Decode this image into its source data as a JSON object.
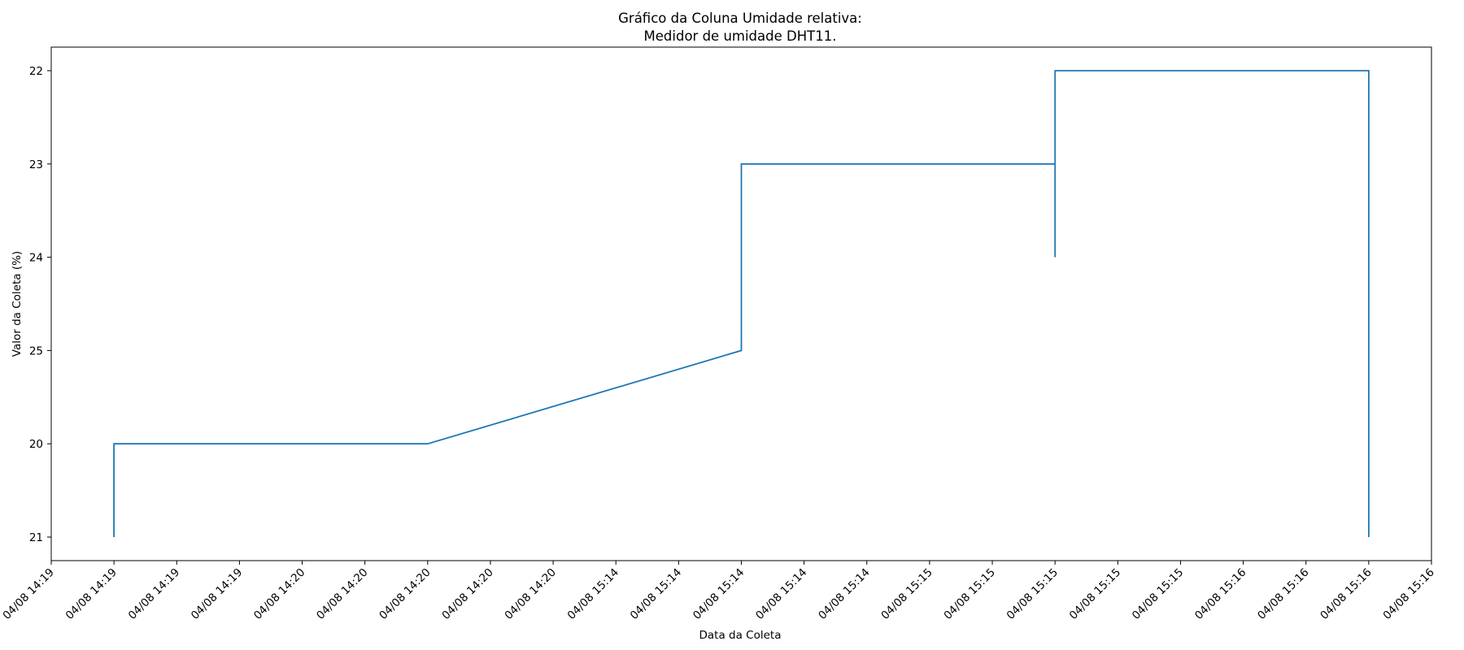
{
  "chart_data": {
    "type": "line",
    "title": "Gráfico da Coluna Umidade relativa:",
    "subtitle": "Medidor de umidade DHT11.",
    "xlabel": "Data da Coleta",
    "ylabel": "Valor da Coleta (%)",
    "y_categories": [
      "21",
      "20",
      "25",
      "24",
      "23",
      "22"
    ],
    "x_tick_labels": [
      "04/08 14:19",
      "04/08 14:19",
      "04/08 14:19",
      "04/08 14:19",
      "04/08 14:20",
      "04/08 14:20",
      "04/08 14:20",
      "04/08 14:20",
      "04/08 14:20",
      "04/08 15:14",
      "04/08 15:14",
      "04/08 15:14",
      "04/08 15:14",
      "04/08 15:14",
      "04/08 15:15",
      "04/08 15:15",
      "04/08 15:15",
      "04/08 15:15",
      "04/08 15:15",
      "04/08 15:16",
      "04/08 15:16",
      "04/08 15:16",
      "04/08 15:16"
    ],
    "series": [
      {
        "color": "#1f77b4",
        "points": [
          {
            "tick": 1,
            "y": "21"
          },
          {
            "tick": 1,
            "y": "20"
          },
          {
            "tick": 6,
            "y": "20"
          },
          {
            "tick": 11,
            "y": "25"
          },
          {
            "tick": 11,
            "y": "23"
          },
          {
            "tick": 16,
            "y": "23"
          },
          {
            "tick": 16,
            "y": "24"
          },
          {
            "tick": 16,
            "y": "22"
          },
          {
            "tick": 21,
            "y": "22"
          },
          {
            "tick": 21,
            "y": "21"
          }
        ]
      }
    ],
    "grid": false
  }
}
